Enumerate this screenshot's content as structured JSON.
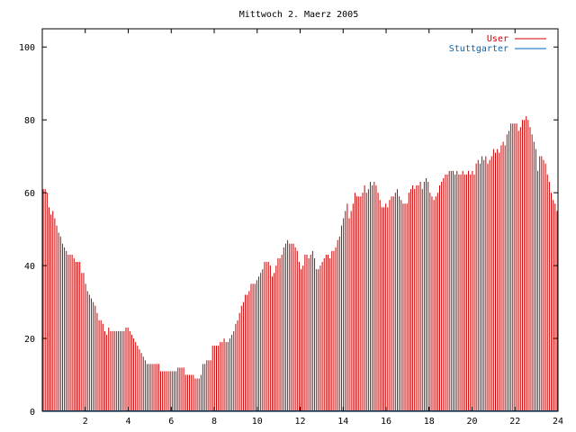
{
  "chart_data": {
    "type": "bar",
    "title": "Mittwoch 2. Maerz 2005",
    "xlabel": "",
    "ylabel": "",
    "xlim": [
      0,
      24
    ],
    "ylim": [
      0,
      105
    ],
    "x_ticks": [
      2,
      4,
      6,
      8,
      10,
      12,
      14,
      16,
      18,
      20,
      22,
      24
    ],
    "x_tick_labels": [
      "2",
      "4",
      "6",
      "8",
      "10",
      "12",
      "14",
      "16",
      "18",
      "20",
      "22",
      "24"
    ],
    "y_ticks": [
      0,
      20,
      40,
      60,
      80,
      100
    ],
    "y_tick_labels": [
      "0",
      "20",
      "40",
      "60",
      "80",
      "100"
    ],
    "grid": false,
    "legend": "top-right",
    "series": [
      {
        "name": "User",
        "color": "#cc0000",
        "x_step_hours": 0.0833,
        "values": [
          61,
          61,
          60,
          56,
          54,
          55,
          53,
          51,
          49,
          48,
          46,
          45,
          44,
          43,
          43,
          43,
          42,
          41,
          41,
          41,
          38,
          38,
          35,
          33,
          32,
          31,
          30,
          29,
          27,
          25,
          25,
          24,
          22,
          21,
          23,
          22,
          22,
          22,
          22,
          22,
          22,
          22,
          22,
          23,
          23,
          22,
          21,
          20,
          19,
          18,
          17,
          16,
          15,
          14,
          13,
          13,
          13,
          13,
          13,
          13,
          13,
          11,
          11,
          11,
          11,
          11,
          11,
          11,
          11,
          11,
          12,
          12,
          12,
          12,
          10,
          10,
          10,
          10,
          10,
          9,
          9,
          9,
          10,
          13,
          13,
          14,
          14,
          14,
          18,
          18,
          18,
          18,
          19,
          19,
          20,
          19,
          19,
          20,
          21,
          22,
          24,
          25,
          27,
          29,
          30,
          32,
          32,
          33,
          35,
          35,
          35,
          36,
          37,
          38,
          39,
          41,
          41,
          41,
          40,
          37,
          38,
          40,
          42,
          42,
          43,
          45,
          46,
          47,
          46,
          46,
          46,
          45,
          44,
          41,
          39,
          40,
          43,
          43,
          42,
          43,
          44,
          42,
          39,
          39,
          40,
          41,
          42,
          43,
          43,
          42,
          44,
          44,
          45,
          47,
          48,
          51,
          53,
          55,
          57,
          53,
          55,
          57,
          60,
          59,
          59,
          59,
          60,
          62,
          60,
          61,
          63,
          62,
          63,
          62,
          60,
          58,
          56,
          56,
          57,
          56,
          58,
          59,
          59,
          60,
          61,
          59,
          58,
          57,
          57,
          57,
          60,
          61,
          62,
          61,
          62,
          62,
          63,
          61,
          63,
          64,
          63,
          60,
          59,
          58,
          59,
          60,
          62,
          63,
          64,
          65,
          65,
          66,
          66,
          66,
          65,
          66,
          65,
          65,
          66,
          65,
          65,
          66,
          65,
          66,
          65,
          68,
          69,
          68,
          70,
          69,
          70,
          68,
          69,
          70,
          72,
          71,
          72,
          71,
          73,
          74,
          73,
          76,
          77,
          79,
          79,
          79,
          79,
          77,
          78,
          80,
          80,
          81,
          80,
          78,
          76,
          74,
          72,
          66,
          70,
          70,
          69,
          68,
          65,
          63,
          60,
          58,
          57,
          55
        ]
      },
      {
        "name": "Stuttgarter",
        "color": "#0066bb",
        "values": [
          0
        ]
      }
    ]
  }
}
